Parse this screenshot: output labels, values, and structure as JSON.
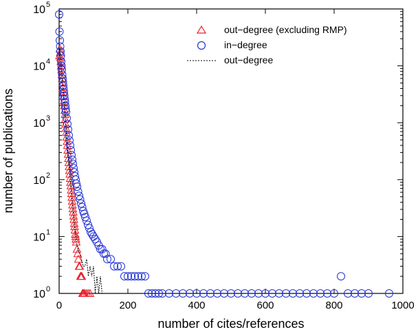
{
  "chart_data": {
    "type": "scatter",
    "xlabel": "number of cites/references",
    "ylabel": "number of publications",
    "xlim": [
      0,
      1000
    ],
    "ylim": [
      1,
      100000
    ],
    "yscale": "log",
    "grid": false,
    "legend_position": "top-right",
    "xticks": [
      {
        "value": 0,
        "label": "0"
      },
      {
        "value": 200,
        "label": "200"
      },
      {
        "value": 400,
        "label": "400"
      },
      {
        "value": 600,
        "label": "600"
      },
      {
        "value": 800,
        "label": "800"
      },
      {
        "value": 1000,
        "label": "1000"
      }
    ],
    "yticks": [
      {
        "value": 1,
        "base": "10",
        "exp": "0"
      },
      {
        "value": 10,
        "base": "10",
        "exp": "1"
      },
      {
        "value": 100,
        "base": "10",
        "exp": "2"
      },
      {
        "value": 1000,
        "base": "10",
        "exp": "3"
      },
      {
        "value": 10000,
        "base": "10",
        "exp": "4"
      },
      {
        "value": 100000,
        "base": "10",
        "exp": "5"
      }
    ],
    "series": [
      {
        "name": "out−degree (excluding RMP)",
        "marker": "triangle",
        "color": "#e8202a",
        "points": [
          [
            1,
            15000
          ],
          [
            2,
            20000
          ],
          [
            3,
            17000
          ],
          [
            4,
            14000
          ],
          [
            5,
            12000
          ],
          [
            6,
            10000
          ],
          [
            7,
            8500
          ],
          [
            8,
            7000
          ],
          [
            9,
            6000
          ],
          [
            10,
            5000
          ],
          [
            11,
            4200
          ],
          [
            12,
            3500
          ],
          [
            13,
            2900
          ],
          [
            14,
            2400
          ],
          [
            15,
            2000
          ],
          [
            16,
            1650
          ],
          [
            17,
            1400
          ],
          [
            18,
            1150
          ],
          [
            19,
            950
          ],
          [
            20,
            800
          ],
          [
            21,
            680
          ],
          [
            22,
            560
          ],
          [
            23,
            470
          ],
          [
            24,
            400
          ],
          [
            25,
            330
          ],
          [
            26,
            280
          ],
          [
            27,
            235
          ],
          [
            28,
            200
          ],
          [
            29,
            170
          ],
          [
            30,
            145
          ],
          [
            31,
            125
          ],
          [
            32,
            105
          ],
          [
            33,
            90
          ],
          [
            34,
            78
          ],
          [
            35,
            66
          ],
          [
            36,
            57
          ],
          [
            37,
            49
          ],
          [
            38,
            42
          ],
          [
            39,
            36
          ],
          [
            40,
            31
          ],
          [
            41,
            27
          ],
          [
            42,
            23
          ],
          [
            43,
            20
          ],
          [
            44,
            17
          ],
          [
            45,
            15
          ],
          [
            46,
            13
          ],
          [
            47,
            11
          ],
          [
            48,
            10
          ],
          [
            49,
            9
          ],
          [
            50,
            8
          ],
          [
            52,
            6
          ],
          [
            54,
            5
          ],
          [
            56,
            4
          ],
          [
            58,
            3
          ],
          [
            60,
            3
          ],
          [
            62,
            2
          ],
          [
            64,
            2
          ],
          [
            66,
            2
          ],
          [
            68,
            1
          ],
          [
            70,
            1
          ],
          [
            72,
            1
          ],
          [
            75,
            1
          ],
          [
            80,
            1
          ],
          [
            85,
            1
          ],
          [
            90,
            1
          ]
        ]
      },
      {
        "name": "in−degree",
        "marker": "circle",
        "color": "#2333d6",
        "points": [
          [
            0,
            80000
          ],
          [
            1,
            40000
          ],
          [
            2,
            28000
          ],
          [
            3,
            22000
          ],
          [
            4,
            18000
          ],
          [
            5,
            15000
          ],
          [
            6,
            12000
          ],
          [
            7,
            10000
          ],
          [
            8,
            8500
          ],
          [
            9,
            7000
          ],
          [
            10,
            6000
          ],
          [
            11,
            5200
          ],
          [
            12,
            4500
          ],
          [
            13,
            3900
          ],
          [
            14,
            3400
          ],
          [
            15,
            3000
          ],
          [
            16,
            2600
          ],
          [
            17,
            2300
          ],
          [
            18,
            2000
          ],
          [
            19,
            1750
          ],
          [
            20,
            1550
          ],
          [
            22,
            1200
          ],
          [
            24,
            950
          ],
          [
            26,
            760
          ],
          [
            28,
            600
          ],
          [
            30,
            490
          ],
          [
            32,
            400
          ],
          [
            34,
            330
          ],
          [
            36,
            270
          ],
          [
            38,
            225
          ],
          [
            40,
            190
          ],
          [
            42,
            160
          ],
          [
            44,
            135
          ],
          [
            46,
            115
          ],
          [
            48,
            100
          ],
          [
            50,
            85
          ],
          [
            52,
            75
          ],
          [
            55,
            62
          ],
          [
            58,
            52
          ],
          [
            61,
            45
          ],
          [
            64,
            38
          ],
          [
            67,
            33
          ],
          [
            70,
            28
          ],
          [
            73,
            25
          ],
          [
            76,
            22
          ],
          [
            80,
            19
          ],
          [
            84,
            16
          ],
          [
            88,
            14
          ],
          [
            92,
            12
          ],
          [
            96,
            11
          ],
          [
            100,
            10
          ],
          [
            105,
            9
          ],
          [
            110,
            8
          ],
          [
            115,
            7
          ],
          [
            120,
            6
          ],
          [
            125,
            6
          ],
          [
            130,
            5
          ],
          [
            135,
            5
          ],
          [
            140,
            4
          ],
          [
            150,
            4
          ],
          [
            160,
            3
          ],
          [
            170,
            3
          ],
          [
            180,
            3
          ],
          [
            190,
            2
          ],
          [
            200,
            2
          ],
          [
            210,
            2
          ],
          [
            220,
            2
          ],
          [
            230,
            2
          ],
          [
            240,
            2
          ],
          [
            250,
            2
          ],
          [
            260,
            1
          ],
          [
            270,
            1
          ],
          [
            280,
            1
          ],
          [
            290,
            1
          ],
          [
            300,
            1
          ],
          [
            320,
            1
          ],
          [
            340,
            1
          ],
          [
            360,
            1
          ],
          [
            380,
            1
          ],
          [
            400,
            1
          ],
          [
            420,
            1
          ],
          [
            440,
            1
          ],
          [
            460,
            1
          ],
          [
            480,
            1
          ],
          [
            500,
            1
          ],
          [
            520,
            1
          ],
          [
            540,
            1
          ],
          [
            560,
            1
          ],
          [
            580,
            1
          ],
          [
            600,
            1
          ],
          [
            620,
            1
          ],
          [
            640,
            1
          ],
          [
            660,
            1
          ],
          [
            680,
            1
          ],
          [
            700,
            1
          ],
          [
            720,
            1
          ],
          [
            740,
            1
          ],
          [
            760,
            1
          ],
          [
            780,
            1
          ],
          [
            800,
            1
          ],
          [
            820,
            2
          ],
          [
            840,
            1
          ],
          [
            860,
            1
          ],
          [
            880,
            1
          ],
          [
            900,
            1
          ],
          [
            960,
            1
          ]
        ]
      },
      {
        "name": "out−degree",
        "marker": "line",
        "color": "#000000",
        "points": [
          [
            1,
            15000
          ],
          [
            2,
            20000
          ],
          [
            3,
            17000
          ],
          [
            5,
            12000
          ],
          [
            8,
            7000
          ],
          [
            10,
            5000
          ],
          [
            13,
            2900
          ],
          [
            16,
            1650
          ],
          [
            20,
            800
          ],
          [
            25,
            330
          ],
          [
            30,
            145
          ],
          [
            35,
            66
          ],
          [
            40,
            31
          ],
          [
            45,
            15
          ],
          [
            50,
            8
          ],
          [
            55,
            6
          ],
          [
            60,
            5
          ],
          [
            65,
            4
          ],
          [
            70,
            3
          ],
          [
            75,
            3
          ],
          [
            80,
            4
          ],
          [
            85,
            2
          ],
          [
            90,
            3
          ],
          [
            95,
            2
          ],
          [
            100,
            3
          ],
          [
            105,
            1
          ],
          [
            110,
            2
          ],
          [
            115,
            1
          ],
          [
            120,
            2
          ],
          [
            125,
            1
          ],
          [
            130,
            1
          ],
          [
            140,
            1
          ],
          [
            150,
            1
          ],
          [
            160,
            1
          ],
          [
            170,
            1
          ],
          [
            180,
            1
          ],
          [
            190,
            1
          ],
          [
            200,
            1
          ],
          [
            210,
            1
          ],
          [
            220,
            1
          ],
          [
            240,
            1
          ],
          [
            260,
            1
          ],
          [
            270,
            1
          ]
        ]
      }
    ]
  }
}
